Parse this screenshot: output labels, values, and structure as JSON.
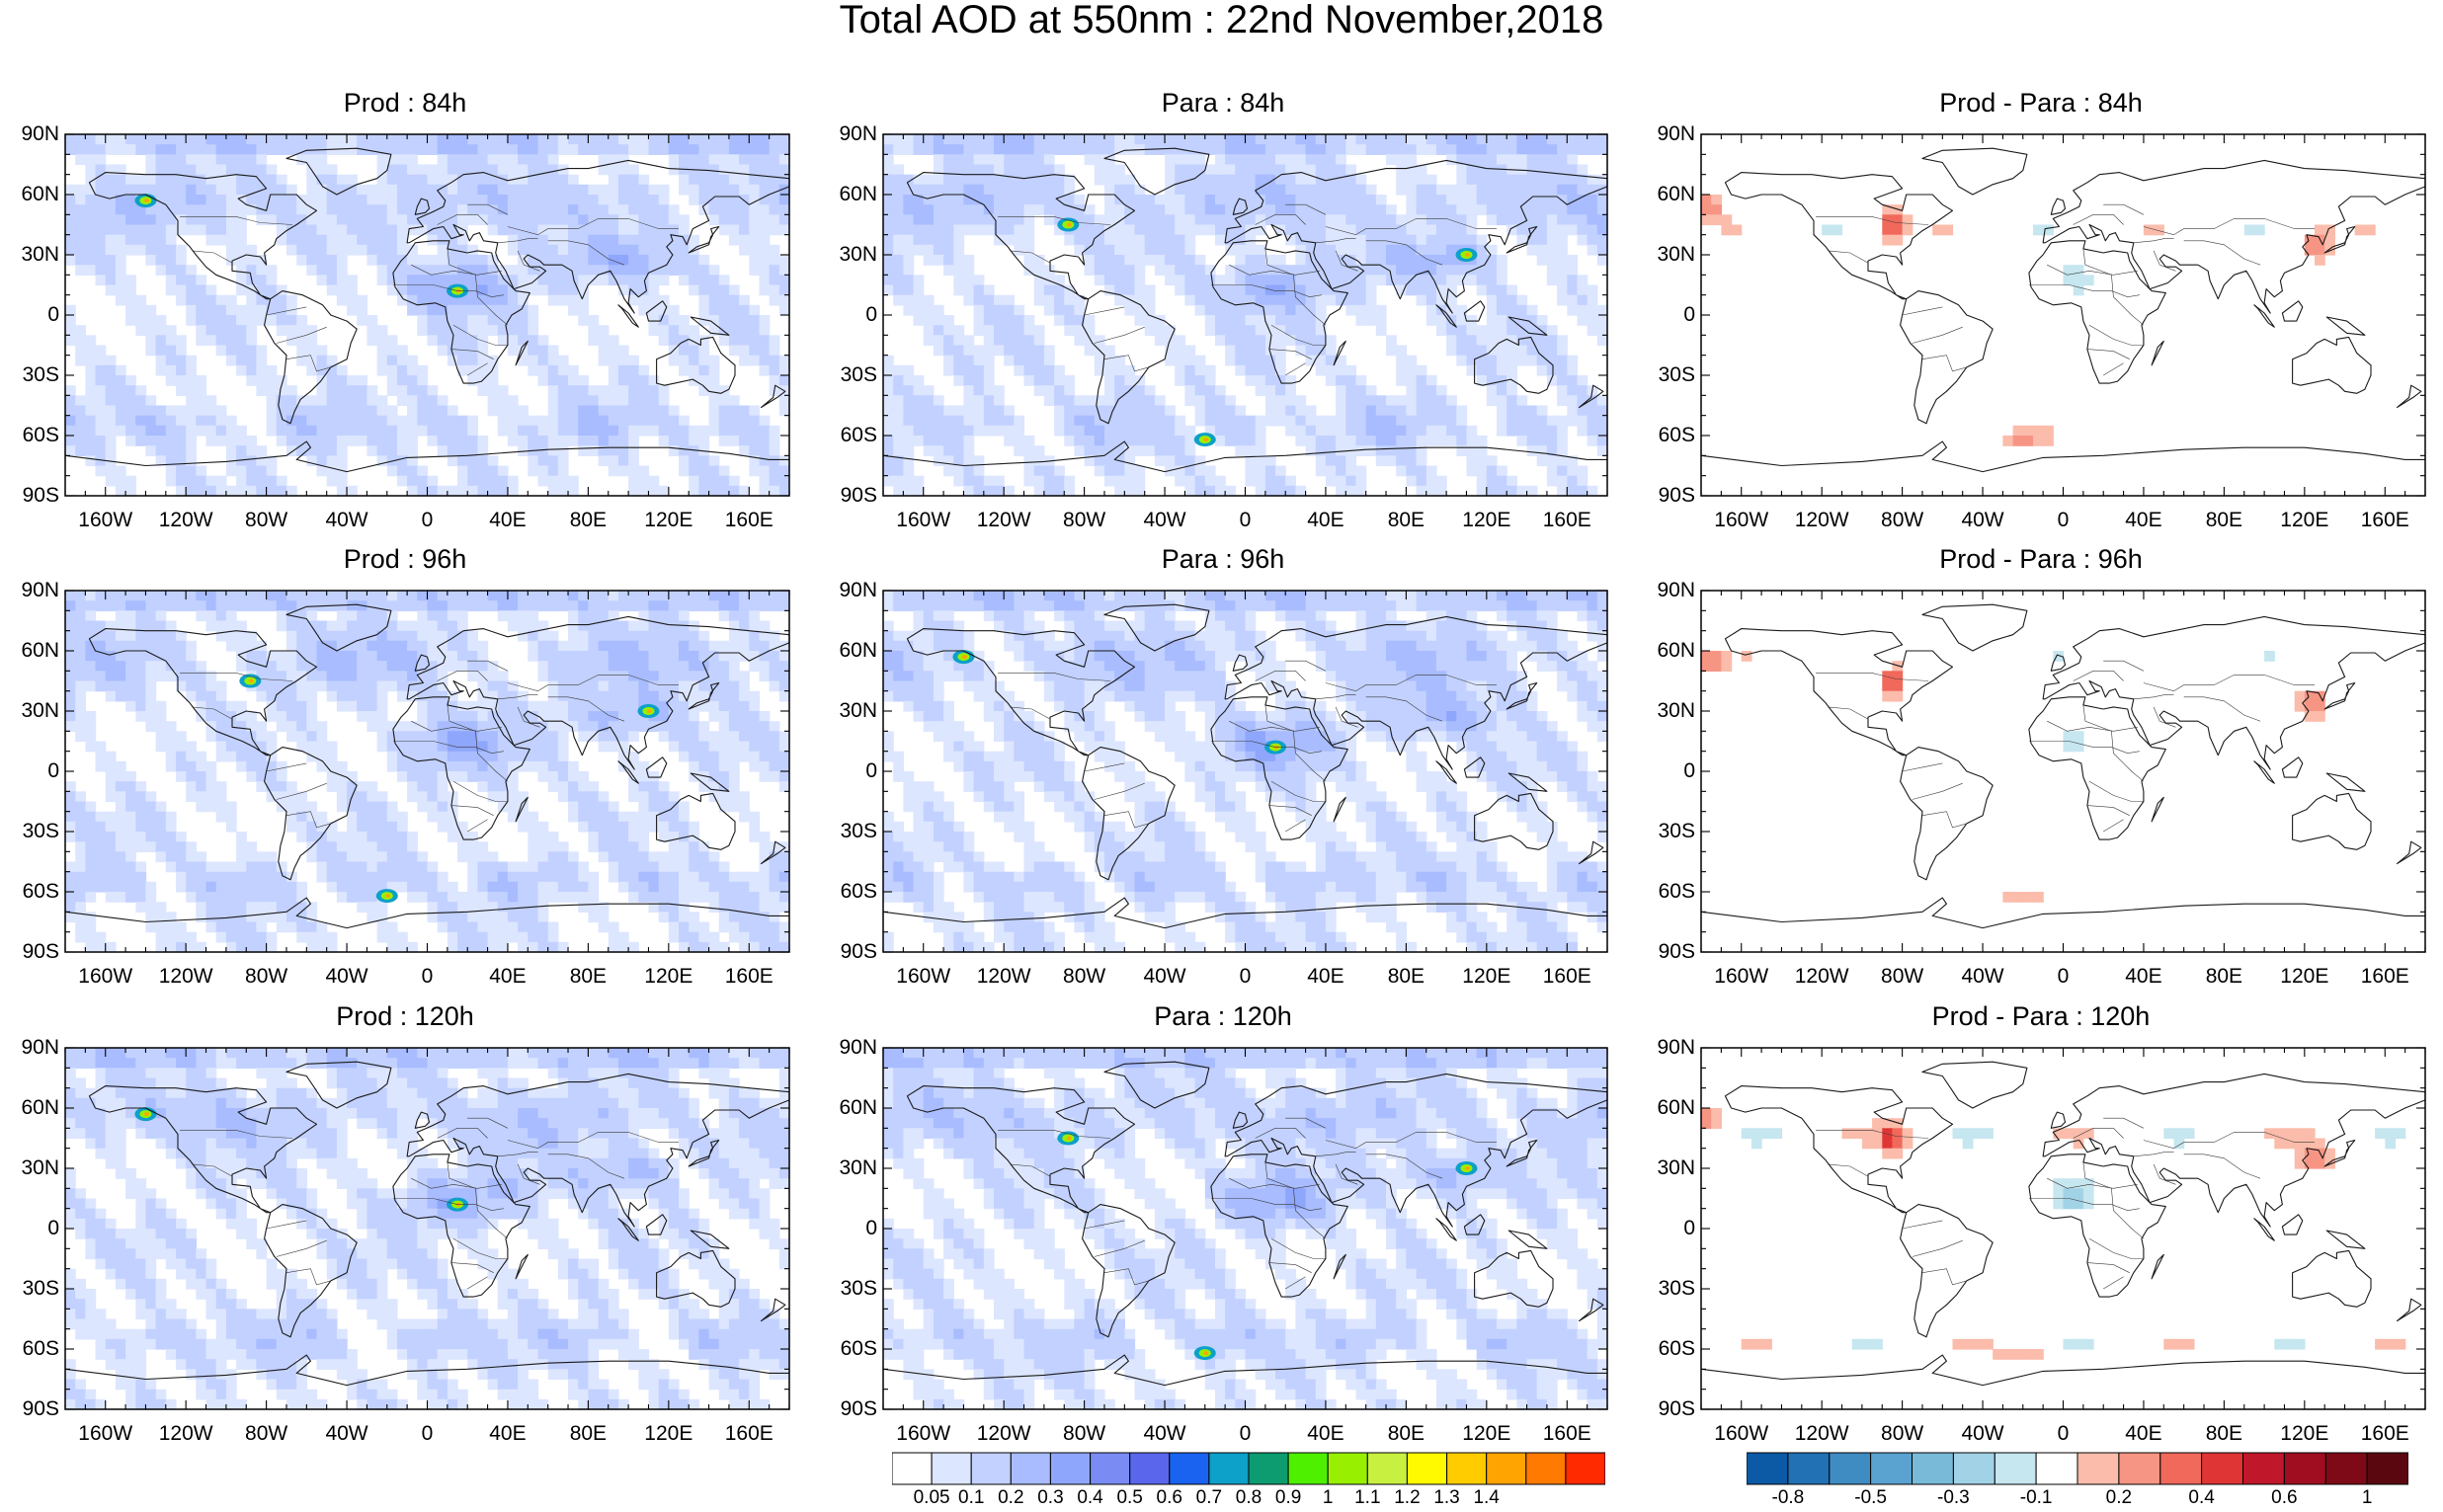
{
  "title": "Total AOD at 550nm : 22nd November,2018",
  "lat_labels": [
    "90N",
    "60N",
    "30N",
    "0",
    "30S",
    "60S",
    "90S"
  ],
  "lon_labels": [
    "160W",
    "120W",
    "80W",
    "40W",
    "0",
    "40E",
    "80E",
    "120E",
    "160E"
  ],
  "panels": [
    {
      "title": "Prod : 84h",
      "type": "aod"
    },
    {
      "title": "Para : 84h",
      "type": "aod"
    },
    {
      "title": "Prod - Para : 84h",
      "type": "diff"
    },
    {
      "title": "Prod : 96h",
      "type": "aod"
    },
    {
      "title": "Para : 96h",
      "type": "aod"
    },
    {
      "title": "Prod - Para : 96h",
      "type": "diff"
    },
    {
      "title": "Prod : 120h",
      "type": "aod"
    },
    {
      "title": "Para : 120h",
      "type": "aod"
    },
    {
      "title": "Prod - Para : 120h",
      "type": "diff"
    }
  ],
  "aod_colorbar": {
    "colors": [
      "#ffffff",
      "#dde6ff",
      "#c2d1ff",
      "#a8bcff",
      "#8ea6fb",
      "#7a8cf3",
      "#5a66ec",
      "#1a63f0",
      "#0da0c8",
      "#0c9c70",
      "#4ef000",
      "#98f000",
      "#c8f040",
      "#fffa00",
      "#ffcc00",
      "#ffa400",
      "#ff7a00",
      "#ff2a00"
    ],
    "labels": [
      "0.05",
      "0.1",
      "0.2",
      "0.3",
      "0.4",
      "0.5",
      "0.6",
      "0.7",
      "0.8",
      "0.9",
      "1",
      "1.1",
      "1.2",
      "1.3",
      "1.4"
    ]
  },
  "diff_colorbar": {
    "colors": [
      "#0c5aa6",
      "#2271b5",
      "#3f8cc2",
      "#5aa2cf",
      "#7abad9",
      "#a2d2e6",
      "#c6e6f0",
      "#ffffff",
      "#fbbcab",
      "#f79585",
      "#f0695b",
      "#e03535",
      "#c0172b",
      "#a00d20",
      "#7e0a18",
      "#5a0710"
    ],
    "labels": [
      "-0.8",
      "-0.5",
      "-0.3",
      "-0.1",
      "0.2",
      "0.4",
      "0.6",
      "1"
    ]
  }
}
